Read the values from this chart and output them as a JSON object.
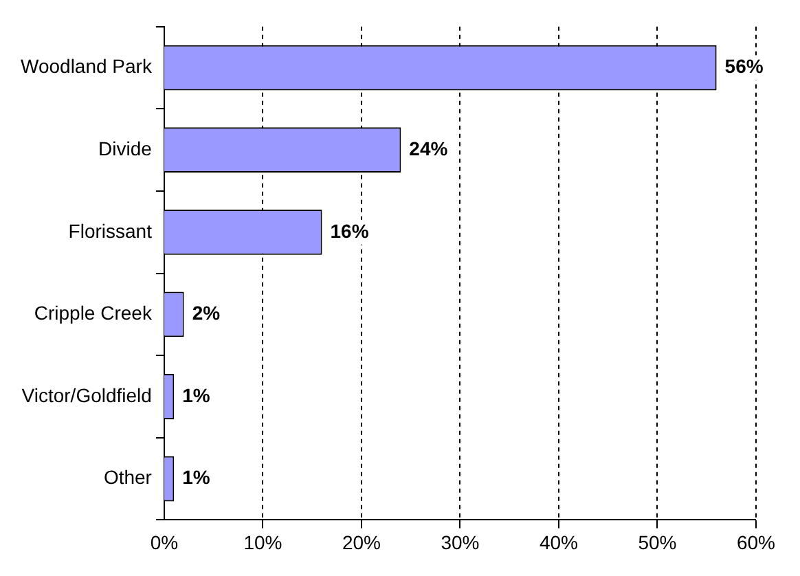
{
  "chart_data": {
    "type": "bar",
    "orientation": "horizontal",
    "categories": [
      "Woodland Park",
      "Divide",
      "Florissant",
      "Cripple Creek",
      "Victor/Goldfield",
      "Other"
    ],
    "values": [
      56,
      24,
      16,
      2,
      1,
      1
    ],
    "value_labels": [
      "56%",
      "24%",
      "16%",
      "2%",
      "1%",
      "1%"
    ],
    "color": "#9999ff",
    "xlim": [
      0,
      60
    ],
    "xticks": [
      {
        "value": 0,
        "label": "0%"
      },
      {
        "value": 10,
        "label": "10%"
      },
      {
        "value": 20,
        "label": "20%"
      },
      {
        "value": 30,
        "label": "30%"
      },
      {
        "value": 40,
        "label": "40%"
      },
      {
        "value": 50,
        "label": "50%"
      },
      {
        "value": 60,
        "label": "60%"
      }
    ],
    "grid": "x",
    "legend": false
  }
}
